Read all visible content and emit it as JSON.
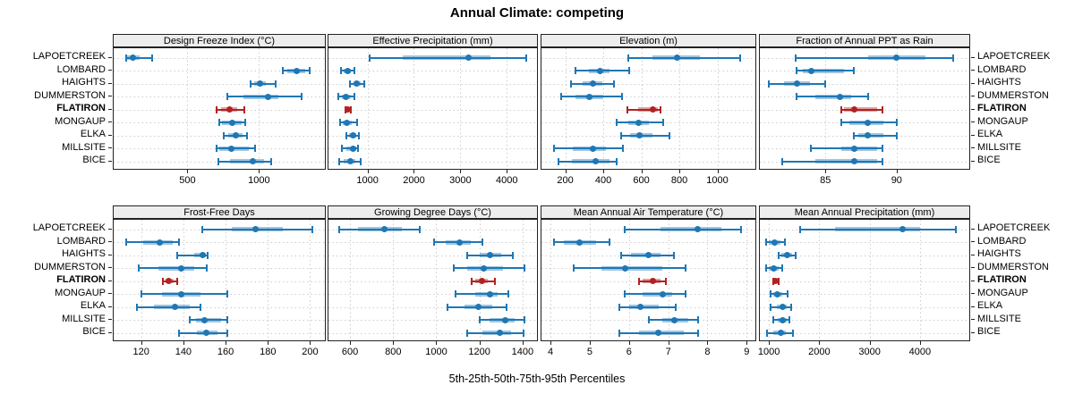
{
  "title": "Annual Climate: competing",
  "caption": "5th-25th-50th-75th-95th Percentiles",
  "highlight_station": "FLATIRON",
  "colors": {
    "series": "#1f77b4",
    "highlight": "#b22222",
    "strip_bg": "#ededed",
    "grid": "#cdcdcd",
    "border": "#222222"
  },
  "chart_data": {
    "type": "dotplot-percentiles",
    "percentile_labels": [
      "5th",
      "25th",
      "50th",
      "75th",
      "95th"
    ],
    "legend_position": "none",
    "grid": "dotted",
    "stations": [
      "LAPOETCREEK",
      "LOMBARD",
      "HAIGHTS",
      "DUMMERSTON",
      "FLATIRON",
      "MONGAUP",
      "ELKA",
      "MILLSITE",
      "BICE"
    ],
    "panels": [
      {
        "title": "Design Freeze Index (°C)",
        "xlim": [
          -15,
          1460
        ],
        "ticks": [
          500,
          1000
        ],
        "values": [
          [
            70,
            80,
            120,
            165,
            255
          ],
          [
            1165,
            1200,
            1265,
            1320,
            1355
          ],
          [
            940,
            965,
            1005,
            1050,
            1115
          ],
          [
            780,
            890,
            1065,
            1135,
            1300
          ],
          [
            705,
            735,
            795,
            850,
            895
          ],
          [
            720,
            740,
            810,
            880,
            905
          ],
          [
            755,
            785,
            835,
            885,
            915
          ],
          [
            705,
            725,
            805,
            930,
            975
          ],
          [
            715,
            800,
            955,
            1035,
            1085
          ]
        ]
      },
      {
        "title": "Effective Precipitation (mm)",
        "xlim": [
          160,
          4650
        ],
        "ticks": [
          1000,
          2000,
          3000,
          4000
        ],
        "values": [
          [
            1040,
            1760,
            3180,
            3650,
            4420
          ],
          [
            430,
            485,
            580,
            635,
            710
          ],
          [
            620,
            695,
            770,
            845,
            925
          ],
          [
            370,
            445,
            540,
            635,
            710
          ],
          [
            520,
            550,
            580,
            615,
            650
          ],
          [
            410,
            470,
            560,
            660,
            770
          ],
          [
            540,
            600,
            695,
            755,
            810
          ],
          [
            445,
            545,
            695,
            755,
            790
          ],
          [
            390,
            495,
            635,
            740,
            845
          ]
        ]
      },
      {
        "title": "Elevation (m)",
        "xlim": [
          75,
          1200
        ],
        "ticks": [
          200,
          400,
          600,
          800,
          1000
        ],
        "values": [
          [
            530,
            660,
            790,
            910,
            1120
          ],
          [
            255,
            325,
            385,
            435,
            535
          ],
          [
            230,
            290,
            345,
            395,
            455
          ],
          [
            180,
            255,
            325,
            400,
            500
          ],
          [
            525,
            585,
            660,
            685,
            700
          ],
          [
            470,
            530,
            585,
            640,
            715
          ],
          [
            495,
            540,
            590,
            660,
            750
          ],
          [
            140,
            240,
            345,
            415,
            505
          ],
          [
            165,
            235,
            360,
            435,
            470
          ]
        ]
      },
      {
        "title": "Fraction of Annual PPT as Rain",
        "xlim": [
          80.4,
          95.1
        ],
        "ticks": [
          85,
          90
        ],
        "values": [
          [
            82.9,
            88,
            90,
            92,
            94
          ],
          [
            83,
            83.4,
            84,
            86.3,
            87
          ],
          [
            81,
            82.1,
            83,
            83.9,
            85
          ],
          [
            83,
            84.3,
            86,
            86.8,
            88
          ],
          [
            86.1,
            86.3,
            87,
            88.6,
            89
          ],
          [
            86.1,
            86.7,
            88,
            89.1,
            90
          ],
          [
            87,
            87.3,
            88,
            89.1,
            90
          ],
          [
            84,
            86.1,
            87,
            88.6,
            89
          ],
          [
            82,
            84.3,
            87,
            88.6,
            89
          ]
        ]
      },
      {
        "title": "Frost-Free Days",
        "xlim": [
          107,
          207
        ],
        "ticks": [
          120,
          140,
          160,
          180,
          200
        ],
        "values": [
          [
            149,
            163,
            174,
            187,
            201
          ],
          [
            113,
            121,
            129,
            135,
            138
          ],
          [
            137,
            145,
            149,
            150.5,
            151.5
          ],
          [
            119,
            128,
            139,
            145,
            151
          ],
          [
            130.5,
            131.5,
            133,
            135.5,
            137
          ],
          [
            120,
            130,
            139,
            148,
            161
          ],
          [
            118,
            126,
            136,
            143,
            148
          ],
          [
            143,
            146,
            150,
            158,
            161
          ],
          [
            138,
            146.5,
            151,
            156,
            161
          ]
        ]
      },
      {
        "title": "Growing Degree Days (°C)",
        "xlim": [
          500,
          1467
        ],
        "ticks": [
          600,
          800,
          1000,
          1200,
          1400
        ],
        "values": [
          [
            550,
            635,
            760,
            840,
            925
          ],
          [
            990,
            1045,
            1110,
            1160,
            1215
          ],
          [
            1145,
            1200,
            1250,
            1300,
            1355
          ],
          [
            1080,
            1145,
            1220,
            1310,
            1410
          ],
          [
            1165,
            1180,
            1210,
            1240,
            1270
          ],
          [
            1090,
            1180,
            1250,
            1285,
            1335
          ],
          [
            1050,
            1130,
            1195,
            1260,
            1325
          ],
          [
            1200,
            1245,
            1320,
            1365,
            1410
          ],
          [
            1145,
            1215,
            1295,
            1345,
            1405
          ]
        ]
      },
      {
        "title": "Mean Annual Air Temperature (°C)",
        "xlim": [
          3.77,
          9.22
        ],
        "ticks": [
          4,
          5,
          6,
          7,
          8,
          9
        ],
        "values": [
          [
            5.9,
            6.8,
            7.75,
            8.35,
            8.85
          ],
          [
            4.1,
            4.35,
            4.75,
            5.15,
            5.5
          ],
          [
            5.8,
            6.05,
            6.5,
            6.8,
            7.15
          ],
          [
            4.6,
            5.3,
            5.9,
            6.85,
            7.45
          ],
          [
            6.25,
            6.35,
            6.6,
            6.8,
            6.95
          ],
          [
            5.9,
            6.35,
            6.85,
            7.1,
            7.45
          ],
          [
            5.75,
            6,
            6.3,
            6.75,
            7.2
          ],
          [
            6.5,
            6.85,
            7.15,
            7.5,
            7.75
          ],
          [
            5.75,
            6.25,
            6.75,
            7.4,
            7.75
          ]
        ]
      },
      {
        "title": "Mean Annual Precipitation (mm)",
        "xlim": [
          820,
          4980
        ],
        "ticks": [
          1000,
          2000,
          3000,
          4000
        ],
        "values": [
          [
            1620,
            2310,
            3650,
            4000,
            4705
          ],
          [
            940,
            1000,
            1120,
            1235,
            1310
          ],
          [
            1195,
            1255,
            1355,
            1455,
            1530
          ],
          [
            940,
            1000,
            1100,
            1195,
            1265
          ],
          [
            1080,
            1100,
            1135,
            1170,
            1195
          ],
          [
            1030,
            1090,
            1175,
            1265,
            1370
          ],
          [
            1040,
            1150,
            1265,
            1355,
            1440
          ],
          [
            1080,
            1175,
            1280,
            1355,
            1415
          ],
          [
            960,
            1090,
            1240,
            1340,
            1470
          ]
        ]
      }
    ]
  }
}
